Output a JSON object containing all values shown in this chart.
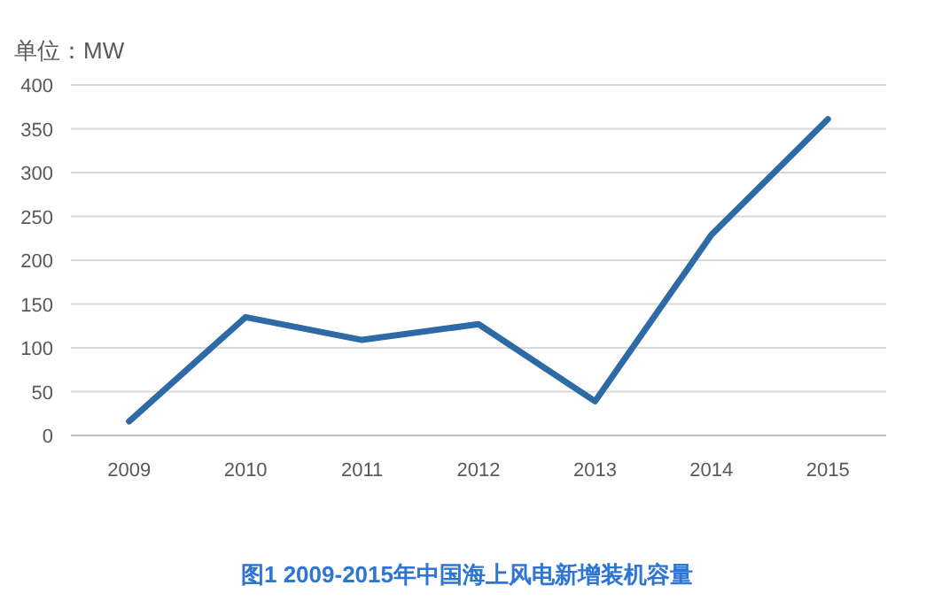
{
  "chart_data": {
    "type": "line",
    "title": "图1 2009-2015年中国海上风电新增装机容量",
    "ylabel": "单位：MW",
    "categories": [
      "2009",
      "2010",
      "2011",
      "2012",
      "2013",
      "2014",
      "2015"
    ],
    "series": [
      {
        "color": "#2e6aa6",
        "values": [
          16,
          135,
          109,
          127,
          39,
          229,
          361
        ]
      }
    ],
    "ylim": [
      0,
      400
    ],
    "yticks": [
      0,
      50,
      100,
      150,
      200,
      250,
      300,
      350,
      400
    ],
    "grid": "y",
    "line_style": "solid"
  }
}
